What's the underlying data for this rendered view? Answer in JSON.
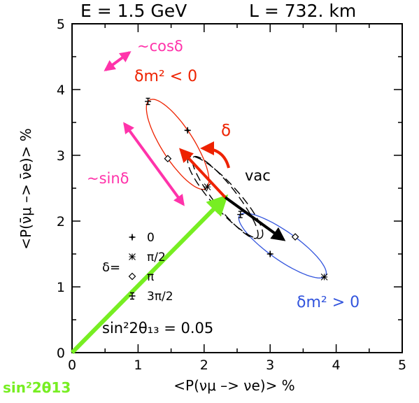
{
  "chart_data": {
    "type": "scatter",
    "title_left": "E = 1.5 GeV",
    "title_right": "L = 732. km",
    "xlabel": "<P(νμ –> νe)> %",
    "ylabel": "<P(ν̄μ –> ν̄e)> %",
    "xlim": [
      0,
      5
    ],
    "ylim": [
      0,
      5
    ],
    "x_ticks": [
      "0",
      "1",
      "2",
      "3",
      "4",
      "5"
    ],
    "y_ticks": [
      "0",
      "1",
      "2",
      "3",
      "4",
      "5"
    ],
    "colors": {
      "normal": "#3355dd",
      "inverted": "#ee2200",
      "mixing": "#77ee22",
      "magenta": "#ff33aa",
      "vacuum": "#000000"
    },
    "ellipses": [
      {
        "name": "δm² > 0",
        "color": "#3355dd",
        "points": [
          {
            "delta": "0",
            "x": 3.0,
            "y": 1.5
          },
          {
            "delta": "π/2",
            "x": 3.82,
            "y": 1.15
          },
          {
            "delta": "π",
            "x": 3.38,
            "y": 1.76
          },
          {
            "delta": "3π/2",
            "x": 2.55,
            "y": 2.1
          }
        ]
      },
      {
        "name": "δm² < 0",
        "color": "#ee2200",
        "points": [
          {
            "delta": "0",
            "x": 1.75,
            "y": 3.38
          },
          {
            "delta": "π/2",
            "x": 2.05,
            "y": 2.52
          },
          {
            "delta": "π",
            "x": 1.45,
            "y": 2.95
          },
          {
            "delta": "3π/2",
            "x": 1.15,
            "y": 3.82
          }
        ]
      }
    ],
    "vacuum_label": "vac",
    "center": {
      "x": 2.32,
      "y": 2.36
    },
    "mixing_label": "sin²2θ₁₃ = 0.05",
    "mixing_axis_label": "sin²2θ13",
    "annotations": {
      "cos": "~cosδ",
      "sin": "~sinδ",
      "delta": "δ",
      "dm_neg": "δm² < 0",
      "dm_pos": "δm² > 0"
    },
    "legend": {
      "prefix": "δ=",
      "entries": [
        "0",
        "π/2",
        "π",
        "3π/2"
      ]
    }
  }
}
